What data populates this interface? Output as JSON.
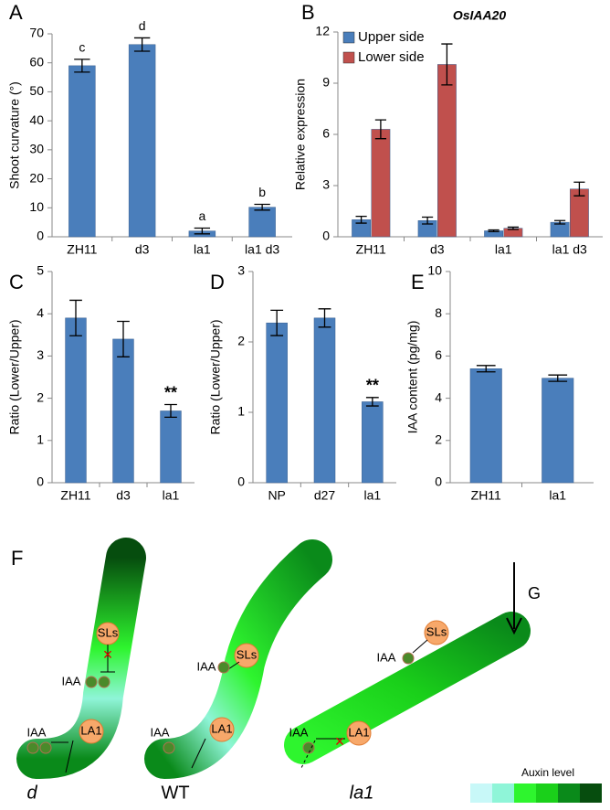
{
  "chart_data": [
    {
      "type": "bar",
      "panel": "A",
      "ylabel": "Shoot curvature (°)",
      "categories": [
        "ZH11",
        "d3",
        "la1",
        "la1 d3"
      ],
      "values": [
        59,
        66.3,
        2,
        10.2
      ],
      "errors": [
        2.2,
        2.3,
        1,
        1
      ],
      "annotations": [
        "c",
        "d",
        "a",
        "b"
      ],
      "color": "#4a7ebb",
      "ylim": [
        0,
        70
      ],
      "yticks": [
        0,
        10,
        20,
        30,
        40,
        50,
        60,
        70
      ]
    },
    {
      "type": "bar",
      "panel": "B",
      "title": "OsIAA20",
      "ylabel": "Relative expression",
      "categories": [
        "ZH11",
        "d3",
        "la1",
        "la1 d3"
      ],
      "series": [
        {
          "name": "Upper side",
          "color": "#4a7ebb",
          "values": [
            1.0,
            0.95,
            0.35,
            0.85
          ],
          "errors": [
            0.2,
            0.2,
            0.05,
            0.1
          ]
        },
        {
          "name": "Lower side",
          "color": "#c0504d",
          "values": [
            6.3,
            10.1,
            0.5,
            2.8
          ],
          "errors": [
            0.55,
            1.2,
            0.07,
            0.4
          ]
        }
      ],
      "legend": "upper left",
      "ylim": [
        0,
        12
      ],
      "yticks": [
        0,
        3,
        6,
        9,
        12
      ]
    },
    {
      "type": "bar",
      "panel": "C",
      "ylabel": "Ratio (Lower/Upper)",
      "categories": [
        "ZH11",
        "d3",
        "la1"
      ],
      "values": [
        3.9,
        3.4,
        1.7
      ],
      "errors": [
        0.42,
        0.42,
        0.15
      ],
      "annotations": [
        null,
        null,
        "**"
      ],
      "color": "#4a7ebb",
      "ylim": [
        0,
        5
      ],
      "yticks": [
        0,
        1,
        2,
        3,
        4,
        5
      ]
    },
    {
      "type": "bar",
      "panel": "D",
      "ylabel": "Ratio (Lower/Upper)",
      "categories": [
        "NP",
        "d27",
        "la1"
      ],
      "values": [
        2.27,
        2.34,
        1.15
      ],
      "errors": [
        0.18,
        0.13,
        0.06
      ],
      "annotations": [
        null,
        null,
        "**"
      ],
      "color": "#4a7ebb",
      "ylim": [
        0,
        3
      ],
      "yticks": [
        0,
        1,
        2,
        3
      ]
    },
    {
      "type": "bar",
      "panel": "E",
      "ylabel": "IAA content (pg/mg)",
      "categories": [
        "ZH11",
        "la1"
      ],
      "values": [
        5.4,
        4.95
      ],
      "errors": [
        0.15,
        0.15
      ],
      "color": "#4a7ebb",
      "ylim": [
        0,
        10
      ],
      "yticks": [
        0,
        2,
        4,
        6,
        8,
        10
      ]
    }
  ],
  "diagram": {
    "panel": "F",
    "gravity": "G",
    "legend_title": "Auxin level",
    "panels": [
      {
        "caption": "d",
        "labels": [
          "SLs",
          "IAA",
          "IAA",
          "LA1"
        ]
      },
      {
        "caption": "WT",
        "labels": [
          "SLs",
          "IAA",
          "IAA",
          "LA1"
        ]
      },
      {
        "caption": "la1",
        "labels": [
          "SLs",
          "IAA",
          "IAA",
          "LA1"
        ]
      }
    ]
  }
}
